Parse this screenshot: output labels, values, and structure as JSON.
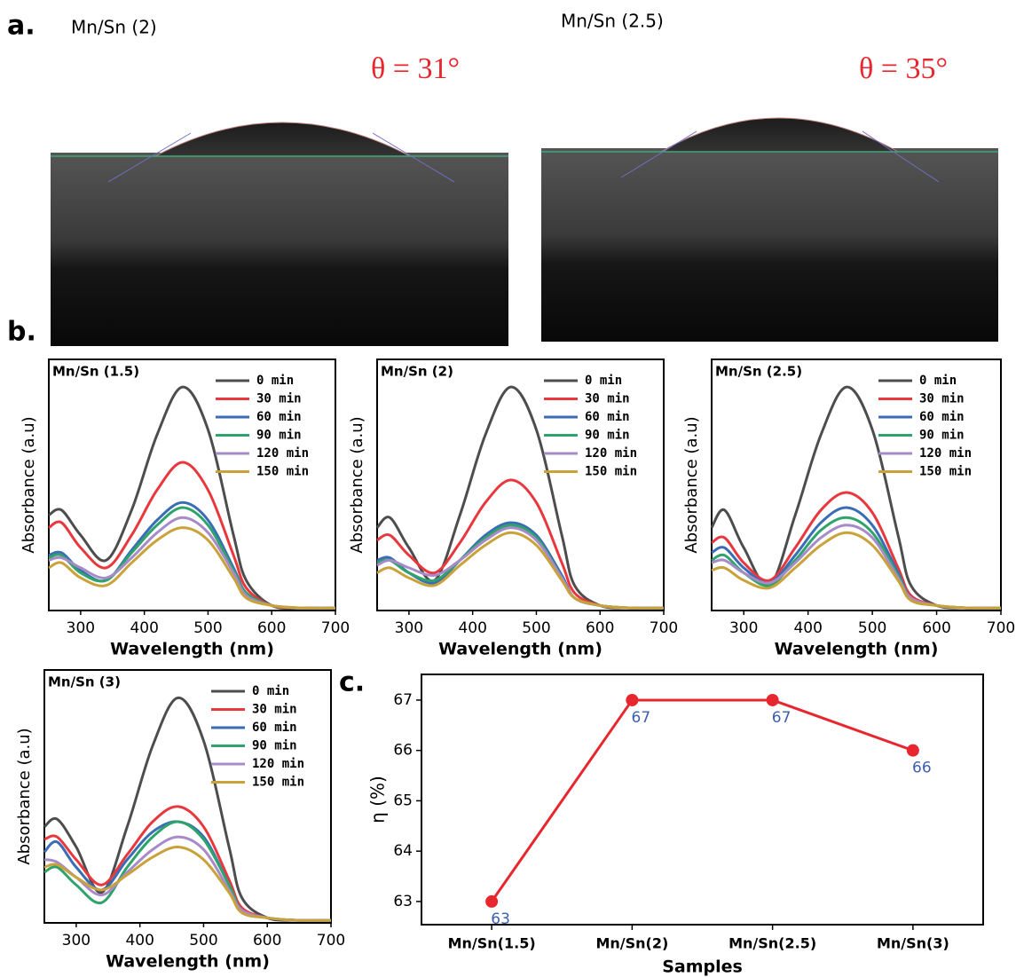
{
  "panel_a": {
    "label": "a.",
    "images": [
      {
        "title": "Mn/Sn (2)",
        "angle": "θ = 31°"
      },
      {
        "title": "Mn/Sn (2.5)",
        "angle": "θ = 35°"
      }
    ]
  },
  "panel_b_label": "b.",
  "panel_c_label": "c.",
  "chart_data": [
    {
      "type": "line",
      "title": "Mn/Sn (1.5)",
      "x_label": "Wavelength (nm)",
      "y_label": "Absorbance (a.u)",
      "x": [
        250,
        270,
        300,
        340,
        380,
        420,
        460,
        500,
        540,
        560,
        600,
        650,
        700
      ],
      "xlim": [
        250,
        700
      ],
      "xticks": [
        300,
        400,
        500,
        600,
        700
      ],
      "ylim": [
        0,
        1
      ],
      "series": [
        {
          "name": "0 min",
          "color": "#4d4d4d",
          "values": [
            0.38,
            0.4,
            0.3,
            0.2,
            0.4,
            0.7,
            0.89,
            0.72,
            0.3,
            0.12,
            0.02,
            0.01,
            0.01
          ]
        },
        {
          "name": "30 min",
          "color": "#e8383d",
          "values": [
            0.33,
            0.35,
            0.25,
            0.17,
            0.3,
            0.48,
            0.59,
            0.48,
            0.22,
            0.09,
            0.02,
            0.01,
            0.01
          ]
        },
        {
          "name": "60 min",
          "color": "#3a6db5",
          "values": [
            0.22,
            0.23,
            0.16,
            0.12,
            0.24,
            0.36,
            0.43,
            0.36,
            0.17,
            0.07,
            0.02,
            0.01,
            0.01
          ]
        },
        {
          "name": "90 min",
          "color": "#2ea36b",
          "values": [
            0.21,
            0.22,
            0.15,
            0.12,
            0.23,
            0.34,
            0.41,
            0.34,
            0.16,
            0.07,
            0.02,
            0.01,
            0.01
          ]
        },
        {
          "name": "120 min",
          "color": "#a78bc9",
          "values": [
            0.2,
            0.21,
            0.17,
            0.13,
            0.21,
            0.31,
            0.37,
            0.31,
            0.15,
            0.06,
            0.02,
            0.01,
            0.01
          ]
        },
        {
          "name": "150 min",
          "color": "#c9a23a",
          "values": [
            0.17,
            0.19,
            0.13,
            0.1,
            0.19,
            0.28,
            0.33,
            0.28,
            0.13,
            0.05,
            0.02,
            0.01,
            0.01
          ]
        }
      ]
    },
    {
      "type": "line",
      "title": "Mn/Sn (2)",
      "x_label": "Wavelength (nm)",
      "y_label": "Absorbance (a.u)",
      "x": [
        250,
        270,
        300,
        340,
        380,
        420,
        460,
        500,
        540,
        560,
        600,
        650,
        700
      ],
      "xlim": [
        250,
        700
      ],
      "xticks": [
        300,
        400,
        500,
        600,
        700
      ],
      "ylim": [
        0,
        1
      ],
      "series": [
        {
          "name": "0 min",
          "color": "#4d4d4d",
          "values": [
            0.33,
            0.37,
            0.25,
            0.12,
            0.38,
            0.7,
            0.89,
            0.72,
            0.3,
            0.1,
            0.02,
            0.01,
            0.01
          ]
        },
        {
          "name": "30 min",
          "color": "#e8383d",
          "values": [
            0.28,
            0.3,
            0.22,
            0.15,
            0.27,
            0.43,
            0.52,
            0.43,
            0.19,
            0.07,
            0.02,
            0.01,
            0.01
          ]
        },
        {
          "name": "60 min",
          "color": "#3a6db5",
          "values": [
            0.2,
            0.21,
            0.15,
            0.11,
            0.2,
            0.3,
            0.35,
            0.3,
            0.14,
            0.05,
            0.02,
            0.01,
            0.01
          ]
        },
        {
          "name": "90 min",
          "color": "#2ea36b",
          "values": [
            0.19,
            0.2,
            0.15,
            0.12,
            0.2,
            0.29,
            0.34,
            0.29,
            0.13,
            0.05,
            0.02,
            0.01,
            0.01
          ]
        },
        {
          "name": "120 min",
          "color": "#a78bc9",
          "values": [
            0.18,
            0.2,
            0.17,
            0.14,
            0.2,
            0.28,
            0.33,
            0.28,
            0.13,
            0.05,
            0.02,
            0.01,
            0.01
          ]
        },
        {
          "name": "150 min",
          "color": "#c9a23a",
          "values": [
            0.15,
            0.17,
            0.13,
            0.1,
            0.18,
            0.26,
            0.31,
            0.26,
            0.12,
            0.05,
            0.02,
            0.01,
            0.01
          ]
        }
      ]
    },
    {
      "type": "line",
      "title": "Mn/Sn (2.5)",
      "x_label": "Wavelength (nm)",
      "y_label": "Absorbance (a.u)",
      "x": [
        250,
        270,
        300,
        340,
        380,
        420,
        460,
        500,
        540,
        560,
        600,
        650,
        700
      ],
      "xlim": [
        250,
        700
      ],
      "xticks": [
        300,
        400,
        500,
        600,
        700
      ],
      "ylim": [
        0,
        1
      ],
      "series": [
        {
          "name": "0 min",
          "color": "#4d4d4d",
          "values": [
            0.33,
            0.4,
            0.25,
            0.1,
            0.38,
            0.7,
            0.89,
            0.72,
            0.3,
            0.1,
            0.02,
            0.01,
            0.01
          ]
        },
        {
          "name": "30 min",
          "color": "#e8383d",
          "values": [
            0.27,
            0.29,
            0.19,
            0.12,
            0.25,
            0.4,
            0.47,
            0.39,
            0.17,
            0.06,
            0.02,
            0.01,
            0.01
          ]
        },
        {
          "name": "60 min",
          "color": "#3a6db5",
          "values": [
            0.23,
            0.25,
            0.17,
            0.11,
            0.22,
            0.35,
            0.41,
            0.34,
            0.15,
            0.05,
            0.02,
            0.01,
            0.01
          ]
        },
        {
          "name": "90 min",
          "color": "#2ea36b",
          "values": [
            0.2,
            0.22,
            0.15,
            0.1,
            0.2,
            0.32,
            0.37,
            0.31,
            0.14,
            0.05,
            0.02,
            0.01,
            0.01
          ]
        },
        {
          "name": "120 min",
          "color": "#a78bc9",
          "values": [
            0.19,
            0.2,
            0.15,
            0.11,
            0.19,
            0.29,
            0.34,
            0.29,
            0.13,
            0.05,
            0.02,
            0.01,
            0.01
          ]
        },
        {
          "name": "150 min",
          "color": "#c9a23a",
          "values": [
            0.16,
            0.17,
            0.12,
            0.09,
            0.17,
            0.26,
            0.31,
            0.26,
            0.12,
            0.04,
            0.02,
            0.01,
            0.01
          ]
        }
      ]
    },
    {
      "type": "line",
      "title": "Mn/Sn (3)",
      "x_label": "Wavelength (nm)",
      "y_label": "Absorbance (a.u)",
      "x": [
        250,
        270,
        300,
        340,
        380,
        420,
        460,
        500,
        540,
        560,
        600,
        650,
        700
      ],
      "xlim": [
        250,
        700
      ],
      "xticks": [
        300,
        400,
        500,
        600,
        700
      ],
      "ylim": [
        0,
        1
      ],
      "series": [
        {
          "name": "0 min",
          "color": "#4d4d4d",
          "values": [
            0.38,
            0.41,
            0.3,
            0.12,
            0.38,
            0.7,
            0.89,
            0.72,
            0.3,
            0.1,
            0.02,
            0.01,
            0.01
          ]
        },
        {
          "name": "30 min",
          "color": "#e8383d",
          "values": [
            0.33,
            0.34,
            0.25,
            0.15,
            0.27,
            0.4,
            0.46,
            0.38,
            0.17,
            0.06,
            0.02,
            0.01,
            0.01
          ]
        },
        {
          "name": "60 min",
          "color": "#3a6db5",
          "values": [
            0.28,
            0.32,
            0.22,
            0.13,
            0.25,
            0.36,
            0.4,
            0.34,
            0.15,
            0.05,
            0.02,
            0.01,
            0.01
          ]
        },
        {
          "name": "90 min",
          "color": "#2ea36b",
          "values": [
            0.2,
            0.22,
            0.15,
            0.08,
            0.22,
            0.34,
            0.4,
            0.33,
            0.15,
            0.05,
            0.02,
            0.01,
            0.01
          ]
        },
        {
          "name": "120 min",
          "color": "#a78bc9",
          "values": [
            0.25,
            0.24,
            0.18,
            0.11,
            0.2,
            0.29,
            0.34,
            0.29,
            0.13,
            0.05,
            0.02,
            0.01,
            0.01
          ]
        },
        {
          "name": "150 min",
          "color": "#c9a23a",
          "values": [
            0.22,
            0.23,
            0.18,
            0.13,
            0.19,
            0.26,
            0.3,
            0.25,
            0.12,
            0.04,
            0.02,
            0.01,
            0.01
          ]
        }
      ]
    },
    {
      "type": "line",
      "x_label": "Samples",
      "y_label": "η (%)",
      "categories": [
        "Mn/Sn(1.5)",
        "Mn/Sn(2)",
        "Mn/Sn(2.5)",
        "Mn/Sn(3)"
      ],
      "values": [
        63,
        67,
        67,
        66
      ],
      "color": "#e8262d",
      "label_color": "#3b5fb0",
      "ylim": [
        62.54,
        67.51
      ],
      "yticks": [
        63,
        64,
        65,
        66,
        67
      ]
    }
  ]
}
